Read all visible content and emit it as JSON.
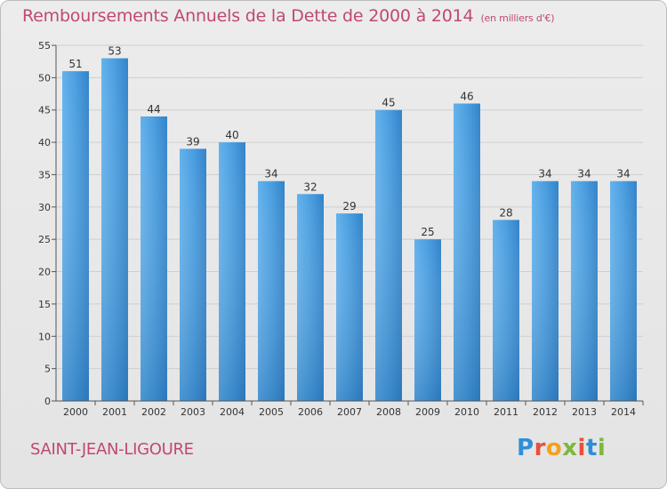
{
  "chart_data": {
    "type": "bar",
    "title": "Remboursements Annuels de la Dette de 2000 à 2014",
    "unit_label": "(en milliers d'€)",
    "categories": [
      "2000",
      "2001",
      "2002",
      "2003",
      "2004",
      "2005",
      "2006",
      "2007",
      "2008",
      "2009",
      "2010",
      "2011",
      "2012",
      "2013",
      "2014"
    ],
    "values": [
      51,
      53,
      44,
      39,
      40,
      34,
      32,
      29,
      45,
      25,
      46,
      28,
      34,
      34,
      34
    ],
    "ylim": [
      0,
      55
    ],
    "yticks": [
      0,
      5,
      10,
      15,
      20,
      25,
      30,
      35,
      40,
      45,
      50,
      55
    ],
    "grid": true,
    "bar_color": "#4a9ee0",
    "xlabel": "",
    "ylabel": ""
  },
  "footer": {
    "town": "SAINT-JEAN-LIGOURE",
    "logo_letters": [
      {
        "ch": "P",
        "color": "#2f8fd8"
      },
      {
        "ch": "r",
        "color": "#e8503a"
      },
      {
        "ch": "o",
        "color": "#f2a21b"
      },
      {
        "ch": "x",
        "color": "#7cb83a"
      },
      {
        "ch": "i",
        "color": "#e8503a"
      },
      {
        "ch": "t",
        "color": "#2f8fd8"
      },
      {
        "ch": "i",
        "color": "#7cb83a"
      }
    ]
  }
}
